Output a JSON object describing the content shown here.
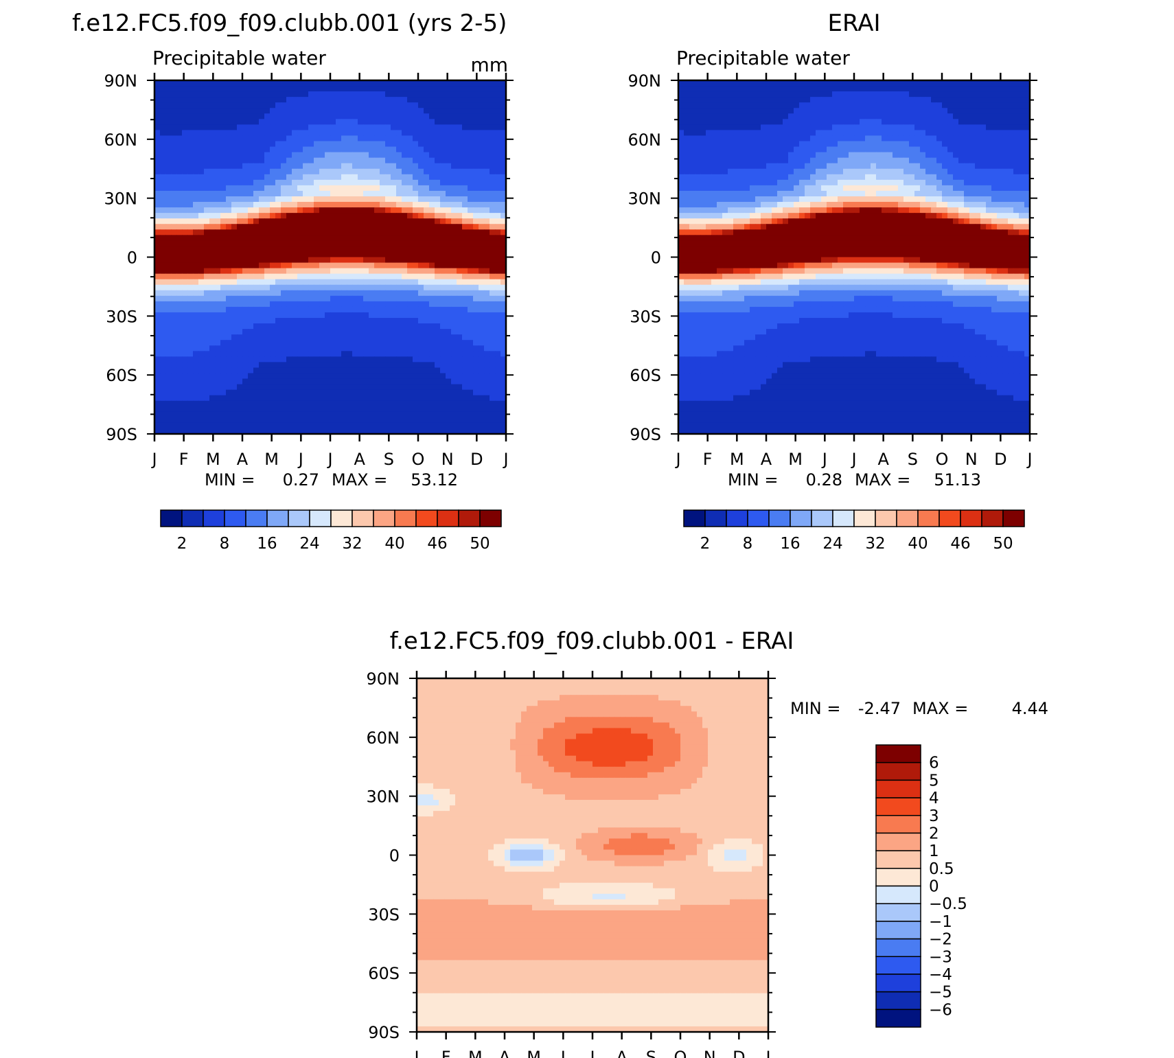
{
  "chart_data": [
    {
      "type": "heatmap",
      "title": "f.e12.FC5.f09_f09.clubb.001 (yrs 2-5)",
      "left_label": "Precipitable water",
      "units": "mm",
      "x_ticks": [
        "J",
        "F",
        "M",
        "A",
        "M",
        "J",
        "J",
        "A",
        "S",
        "O",
        "N",
        "D",
        "J"
      ],
      "y_ticks": [
        "90N",
        "60N",
        "30N",
        "0",
        "30S",
        "60S",
        "90S"
      ],
      "stats": {
        "min_label": "MIN =",
        "min": "0.27",
        "max_label": "MAX =",
        "max": "53.12"
      },
      "colorbar_labels": [
        "2",
        "8",
        "16",
        "24",
        "32",
        "40",
        "46",
        "50"
      ],
      "levels": [
        2,
        4,
        8,
        12,
        16,
        20,
        24,
        28,
        32,
        36,
        40,
        44,
        46,
        48,
        50
      ]
    },
    {
      "type": "heatmap",
      "title": "ERAI",
      "left_label": "Precipitable water",
      "x_ticks": [
        "J",
        "F",
        "M",
        "A",
        "M",
        "J",
        "J",
        "A",
        "S",
        "O",
        "N",
        "D",
        "J"
      ],
      "y_ticks": [
        "90N",
        "60N",
        "30N",
        "0",
        "30S",
        "60S",
        "90S"
      ],
      "stats": {
        "min_label": "MIN =",
        "min": "0.28",
        "max_label": "MAX =",
        "max": "51.13"
      },
      "colorbar_labels": [
        "2",
        "8",
        "16",
        "24",
        "32",
        "40",
        "46",
        "50"
      ],
      "levels": [
        2,
        4,
        8,
        12,
        16,
        20,
        24,
        28,
        32,
        36,
        40,
        44,
        46,
        48,
        50
      ]
    },
    {
      "type": "heatmap",
      "title": "f.e12.FC5.f09_f09.clubb.001 - ERAI",
      "x_ticks": [
        "J",
        "F",
        "M",
        "A",
        "M",
        "J",
        "J",
        "A",
        "S",
        "O",
        "N",
        "D",
        "J"
      ],
      "y_ticks": [
        "90N",
        "60N",
        "30N",
        "0",
        "30S",
        "60S",
        "90S"
      ],
      "stats": {
        "min_label": "MIN =",
        "min": "-2.47",
        "max_label": "MAX =",
        "max": "4.44"
      },
      "colorbar_labels": [
        "6",
        "5",
        "4",
        "3",
        "2",
        "1",
        "0.5",
        "0",
        "-0.5",
        "-1",
        "-2",
        "-3",
        "-4",
        "-5",
        "-6"
      ],
      "levels": [
        -6,
        -5,
        -4,
        -3,
        -2,
        -1,
        -0.5,
        0,
        0.5,
        1,
        2,
        3,
        4,
        5,
        6
      ]
    }
  ],
  "colors": {
    "abs_scale": [
      "#00137f",
      "#0f2db4",
      "#1e40dc",
      "#2e5af0",
      "#4a7cf2",
      "#7fa8f7",
      "#aac8fa",
      "#d6e8fc",
      "#fde8d6",
      "#fcc8ad",
      "#fba584",
      "#f87a50",
      "#f24a1e",
      "#dc3013",
      "#b01a0a",
      "#7d0000"
    ],
    "diff_scale": [
      "#00137f",
      "#0f2db4",
      "#1e40dc",
      "#2e5af0",
      "#4a7cf2",
      "#7fa8f7",
      "#aac8fa",
      "#d6e8fc",
      "#fde8d6",
      "#fcc8ad",
      "#fba584",
      "#f87a50",
      "#f24a1e",
      "#dc3013",
      "#b01a0a",
      "#7d0000"
    ]
  }
}
